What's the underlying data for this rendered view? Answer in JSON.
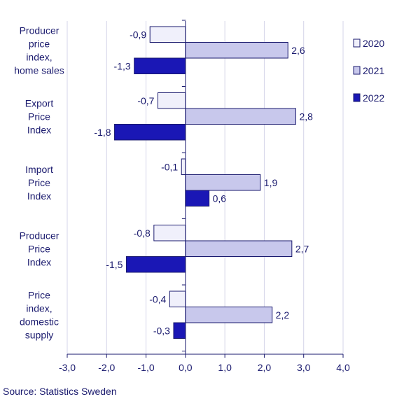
{
  "chart_data": {
    "type": "bar",
    "orientation": "horizontal",
    "categories": [
      [
        "Producer",
        "price",
        "index,",
        "home sales"
      ],
      [
        "Export",
        "Price",
        "Index"
      ],
      [
        "Import",
        "Price",
        "Index"
      ],
      [
        "Producer",
        "Price",
        "Index"
      ],
      [
        "Price",
        "index,",
        "domestic",
        "supply"
      ]
    ],
    "series": [
      {
        "name": "2020",
        "color": "#f0f0fb",
        "values": [
          -0.9,
          -0.7,
          -0.1,
          -0.8,
          -0.4
        ]
      },
      {
        "name": "2021",
        "color": "#c8c8ec",
        "values": [
          2.6,
          2.8,
          1.9,
          2.7,
          2.2
        ]
      },
      {
        "name": "2022",
        "color": "#1a17b5",
        "values": [
          -1.3,
          -1.8,
          0.6,
          -1.5,
          -0.3
        ]
      }
    ],
    "xlim": [
      -3.0,
      4.0
    ],
    "xticks": [
      "-3,0",
      "-2,0",
      "-1,0",
      "0,0",
      "1,0",
      "2,0",
      "3,0",
      "4,0"
    ],
    "grid": true,
    "legend_position": "right",
    "decimal_separator": ","
  },
  "source": "Source: Statistics Sweden"
}
